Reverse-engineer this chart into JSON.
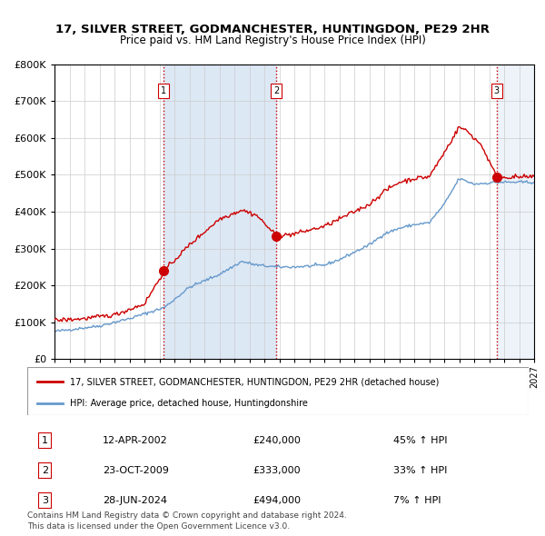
{
  "title1": "17, SILVER STREET, GODMANCHESTER, HUNTINGDON, PE29 2HR",
  "title2": "Price paid vs. HM Land Registry's House Price Index (HPI)",
  "ylabel": "",
  "ylim": [
    0,
    800000
  ],
  "yticks": [
    0,
    100000,
    200000,
    300000,
    400000,
    500000,
    600000,
    700000,
    800000
  ],
  "ytick_labels": [
    "£0",
    "£100K",
    "£200K",
    "£300K",
    "£400K",
    "£500K",
    "£600K",
    "£700K",
    "£800K"
  ],
  "sale_dates": [
    "2002-04-12",
    "2009-10-23",
    "2024-06-28"
  ],
  "sale_prices": [
    240000,
    333000,
    494000
  ],
  "sale_labels": [
    "1",
    "2",
    "3"
  ],
  "sale_pct": [
    "45%",
    "33%",
    "7%"
  ],
  "sale_date_labels": [
    "12-APR-2002",
    "23-OCT-2009",
    "28-JUN-2024"
  ],
  "sale_price_labels": [
    "£240,000",
    "£333,000",
    "£494,000"
  ],
  "vline_color": "#cc0000",
  "vline_style": ":",
  "shade_color": "#dde8f5",
  "line_color_red": "#cc0000",
  "line_color_blue": "#6699cc",
  "legend_label_red": "17, SILVER STREET, GODMANCHESTER, HUNTINGDON, PE29 2HR (detached house)",
  "legend_label_blue": "HPI: Average price, detached house, Huntingdonshire",
  "footnote1": "Contains HM Land Registry data © Crown copyright and database right 2024.",
  "footnote2": "This data is licensed under the Open Government Licence v3.0.",
  "x_start_year": 1995,
  "x_end_year": 2027,
  "background_color": "#ffffff"
}
